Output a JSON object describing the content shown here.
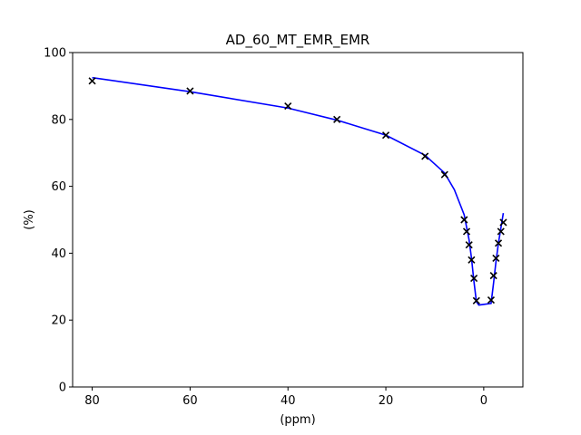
{
  "chart_data": {
    "type": "line",
    "title": "AD_60_MT_EMR_EMR",
    "xlabel": "(ppm)",
    "ylabel": "(%)",
    "xlim": [
      84,
      -8
    ],
    "ylim": [
      0,
      100
    ],
    "x_axis_inverted": true,
    "grid": false,
    "legend": "none",
    "x_ticks": [
      80,
      60,
      40,
      20,
      0
    ],
    "y_ticks": [
      0,
      20,
      40,
      60,
      80,
      100
    ],
    "series": [
      {
        "kind": "markers",
        "marker": "x",
        "color": "#000000",
        "points": [
          [
            80,
            91.5
          ],
          [
            60,
            88.5
          ],
          [
            40,
            84.0
          ],
          [
            30,
            80.0
          ],
          [
            20,
            75.3
          ],
          [
            12,
            69.0
          ],
          [
            8,
            63.5
          ],
          [
            4,
            50.0
          ],
          [
            3.5,
            46.5
          ],
          [
            3,
            42.5
          ],
          [
            2.5,
            38.0
          ],
          [
            2,
            32.5
          ],
          [
            1.5,
            25.8
          ],
          [
            -1.5,
            26.0
          ],
          [
            -2,
            33.3
          ],
          [
            -2.5,
            38.5
          ],
          [
            -3,
            43.0
          ],
          [
            -3.5,
            46.5
          ],
          [
            -4,
            49.2
          ]
        ]
      },
      {
        "kind": "line",
        "color": "#0000ff",
        "points": [
          [
            80,
            92.5
          ],
          [
            60,
            88.3
          ],
          [
            40,
            83.4
          ],
          [
            30,
            79.8
          ],
          [
            20,
            75.3
          ],
          [
            12,
            69.3
          ],
          [
            8,
            64.0
          ],
          [
            6,
            59.0
          ],
          [
            4,
            51.5
          ],
          [
            3,
            44.0
          ],
          [
            2.5,
            38.5
          ],
          [
            2,
            31.5
          ],
          [
            1.5,
            25.5
          ],
          [
            1,
            24.5
          ],
          [
            -1.5,
            25.0
          ],
          [
            -2,
            31.0
          ],
          [
            -2.5,
            37.5
          ],
          [
            -3,
            43.0
          ],
          [
            -3.5,
            47.5
          ],
          [
            -4,
            52.0
          ]
        ]
      }
    ]
  }
}
